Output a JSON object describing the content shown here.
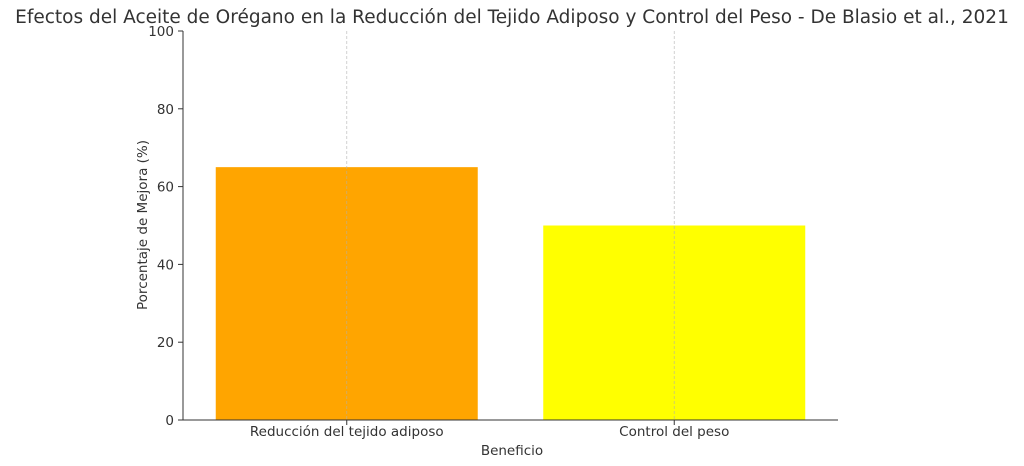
{
  "chart_data": {
    "type": "bar",
    "title": "Efectos del Aceite de Orégano en la Reducción del Tejido Adiposo y Control del Peso - De Blasio et al., 2021",
    "xlabel": "Beneficio",
    "ylabel": "Porcentaje de Mejora (%)",
    "categories": [
      "Reducción del tejido adiposo",
      "Control del peso"
    ],
    "values": [
      65,
      50
    ],
    "colors": [
      "#FFA500",
      "#FFFF00"
    ],
    "ylim": [
      0,
      100
    ],
    "yticks": [
      0,
      20,
      40,
      60,
      80,
      100
    ],
    "grid": "x-only dashed",
    "legend": "none"
  }
}
